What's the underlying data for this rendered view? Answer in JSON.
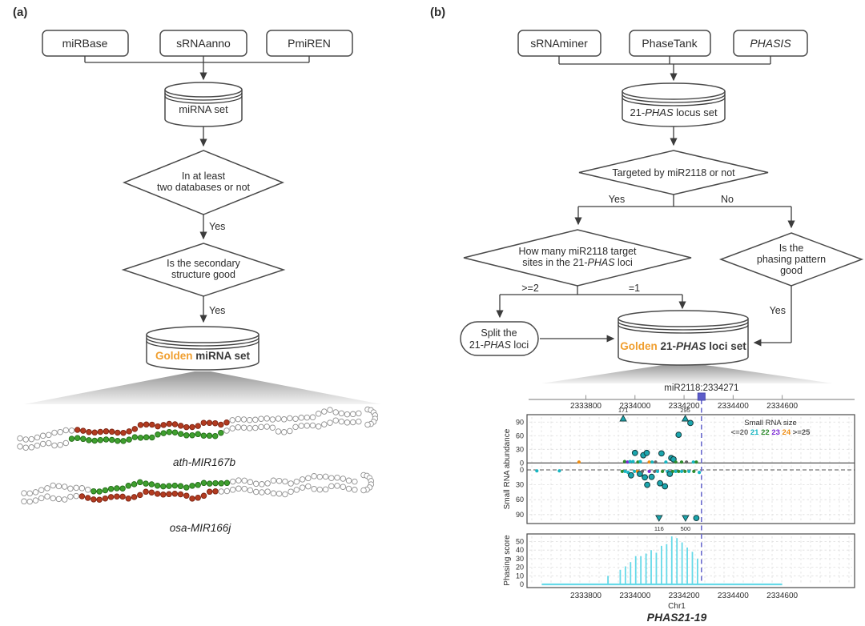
{
  "colors": {
    "golden": "#f09e2e",
    "flow_line": "#3c3c3c",
    "box_border": "#4a4a4a",
    "funnel_top": "#949494",
    "funnel_bottom": "#f4f4f4",
    "guide_line": "#6a6ace",
    "marker_square": "#5d5dc9",
    "phasing_bar": "#66d9e8",
    "axis_text": "#8a8a8a",
    "grid": "#dedede",
    "mature_red": "#b23b20",
    "star_green": "#3f9f2f"
  },
  "panel_a": {
    "label": "(a)",
    "sources": [
      {
        "label": "miRBase",
        "color": "#bf4a96"
      },
      {
        "label": "sRNAanno",
        "color": "#f09a47"
      },
      {
        "label": "PmiREN",
        "color": "#5ba03c"
      }
    ],
    "cylinder1": "miRNA set",
    "diamond1_line1": "In at least",
    "diamond1_line2": "two databases or not",
    "yes1": "Yes",
    "diamond2_line1": "Is the secondary",
    "diamond2_line2": "structure good",
    "yes2": "Yes",
    "golden_cylinder": {
      "golden": "Golden ",
      "rest": "miRNA set"
    },
    "structures": [
      {
        "label": "ath-MIR167b"
      },
      {
        "label": "osa-MIR166j"
      }
    ]
  },
  "panel_b": {
    "label": "(b)",
    "sources": [
      {
        "label": "sRNAminer",
        "color": "#f4ad68",
        "italic": false
      },
      {
        "label": "PhaseTank",
        "color": "#5ba03c",
        "italic": false
      },
      {
        "label": "PHASIS",
        "color": "#b8298c",
        "italic": true
      }
    ],
    "cylinder1": {
      "pre": "21-",
      "italic": "PHAS",
      "post": " locus set"
    },
    "diamond1": "Targeted by miR2118 or not",
    "yes": "Yes",
    "no": "No",
    "diamond2_line1": "How many miR2118 target",
    "diamond2_line2": {
      "pre": "sites in the 21-",
      "italic": "PHAS",
      "post": " loci"
    },
    "ge2": ">=2",
    "eq1": "=1",
    "split_line1": "Split the",
    "split_line2": {
      "pre": "21-",
      "italic": "PHAS",
      "post": " loci"
    },
    "diamond3_line1": "Is the",
    "diamond3_line2": "phasing pattern",
    "diamond3_line3": "good",
    "yes3": "Yes",
    "golden_cylinder": {
      "golden": "Golden ",
      "pre": "21-",
      "italic": "PHAS",
      "post": " loci set"
    }
  },
  "chart_data": {
    "type": "scatter",
    "description": "Genome-browser view of small RNA abundance and phasing score over a 21-PHAS locus",
    "title_marker": {
      "label": "miR2118:2334271",
      "pos": 2334271
    },
    "x_ticks": [
      2333800,
      2334000,
      2334200,
      2334400,
      2334600
    ],
    "x_range": [
      2333560,
      2334895
    ],
    "xlabel": "Chr1",
    "locus_label": "PHAS21-19",
    "guide_line_pos": 2334271,
    "abundance": {
      "ylabel": "Small RNA abundance",
      "y_ticks": [
        0,
        30,
        60,
        90
      ],
      "legend": {
        "title": "Small RNA size",
        "entries": [
          {
            "label": "<=20",
            "color": "#666666"
          },
          {
            "label": "21",
            "color": "#18b6c2"
          },
          {
            "label": "22",
            "color": "#2e8b2e"
          },
          {
            "label": "23",
            "color": "#7d2bd6"
          },
          {
            "label": "24",
            "color": "#ef8d12"
          },
          {
            "label": ">=25",
            "color": "#555555"
          }
        ]
      },
      "size_colors": {
        "le20": "#666666",
        "21": "#18b6c2",
        "22": "#2e8b2e",
        "23": "#7d2bd6",
        "24": "#ef8d12",
        "ge25": "#555555"
      },
      "points": [
        [
          2333772,
          2,
          "24"
        ],
        [
          2333958,
          3,
          "22"
        ],
        [
          2333970,
          2,
          "23"
        ],
        [
          2333980,
          3,
          "21"
        ],
        [
          2333992,
          3,
          "21"
        ],
        [
          2334000,
          22,
          "21"
        ],
        [
          2334012,
          2,
          "22"
        ],
        [
          2334022,
          3,
          "21"
        ],
        [
          2334034,
          17,
          "21"
        ],
        [
          2334048,
          22,
          "21"
        ],
        [
          2334058,
          2,
          "24"
        ],
        [
          2334070,
          2,
          "21"
        ],
        [
          2334084,
          2,
          "le20"
        ],
        [
          2334108,
          21,
          "21"
        ],
        [
          2334126,
          2,
          "21"
        ],
        [
          2334148,
          11,
          "21"
        ],
        [
          2334157,
          8,
          "23"
        ],
        [
          2334166,
          2,
          "22"
        ],
        [
          2334178,
          62,
          "21"
        ],
        [
          2334190,
          2,
          "22"
        ],
        [
          2334210,
          2,
          "le20"
        ],
        [
          2334226,
          88,
          "21"
        ],
        [
          2334238,
          2,
          "21"
        ],
        [
          2334250,
          2,
          "22"
        ],
        [
          2333600,
          -2,
          "21"
        ],
        [
          2333692,
          -2,
          "21"
        ],
        [
          2333948,
          -3,
          "22"
        ],
        [
          2333960,
          -3,
          "21"
        ],
        [
          2333972,
          -5,
          "21"
        ],
        [
          2333984,
          -11,
          "21"
        ],
        [
          2333998,
          -3,
          "21"
        ],
        [
          2334010,
          -3,
          "24"
        ],
        [
          2334020,
          -8,
          "21"
        ],
        [
          2334030,
          -3,
          "le20"
        ],
        [
          2334040,
          -15,
          "21"
        ],
        [
          2334050,
          -30,
          "21"
        ],
        [
          2334058,
          -3,
          "23"
        ],
        [
          2334068,
          -14,
          "21"
        ],
        [
          2334080,
          -3,
          "le20"
        ],
        [
          2334092,
          -3,
          "21"
        ],
        [
          2334102,
          -27,
          "21"
        ],
        [
          2334112,
          -3,
          "22"
        ],
        [
          2334122,
          -33,
          "21"
        ],
        [
          2334132,
          -3,
          "21"
        ],
        [
          2334142,
          -8,
          "23"
        ],
        [
          2334154,
          -3,
          "22"
        ],
        [
          2334166,
          -3,
          "21"
        ],
        [
          2334178,
          -3,
          "22"
        ],
        [
          2334190,
          -3,
          "21"
        ],
        [
          2334204,
          -3,
          "22"
        ],
        [
          2334220,
          -3,
          "21"
        ],
        [
          2334240,
          -3,
          "22"
        ],
        [
          2334262,
          -5,
          "21"
        ],
        [
          2334250,
          -97,
          "21"
        ]
      ],
      "clipped_top": [
        {
          "pos": 2333952,
          "label": "171",
          "size": "21"
        },
        {
          "pos": 2334205,
          "label": "295",
          "size": "21"
        }
      ],
      "clipped_bottom": [
        {
          "pos": 2334098,
          "label": "116",
          "size": "21"
        },
        {
          "pos": 2334206,
          "label": "500",
          "size": "21"
        }
      ]
    },
    "phasing": {
      "ylabel": "Phasing score",
      "y_ticks": [
        0,
        10,
        20,
        30,
        40,
        50
      ],
      "baseline_range": [
        2333620,
        2334600
      ],
      "spikes": [
        [
          2333890,
          10
        ],
        [
          2333940,
          17
        ],
        [
          2333961,
          21
        ],
        [
          2333982,
          26
        ],
        [
          2334003,
          33
        ],
        [
          2334024,
          33
        ],
        [
          2334045,
          36
        ],
        [
          2334066,
          40
        ],
        [
          2334087,
          37
        ],
        [
          2334108,
          45
        ],
        [
          2334129,
          47
        ],
        [
          2334150,
          56
        ],
        [
          2334171,
          54
        ],
        [
          2334192,
          49
        ],
        [
          2334213,
          43
        ],
        [
          2334234,
          38
        ],
        [
          2334255,
          30
        ]
      ]
    }
  }
}
